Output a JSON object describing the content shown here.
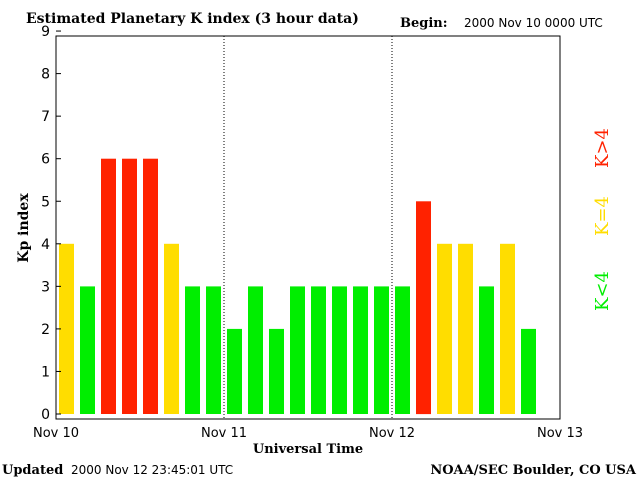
{
  "header": {
    "title": "Estimated Planetary K index (3 hour data)",
    "begin_label": "Begin:",
    "begin_value": "2000 Nov 10 0000 UTC"
  },
  "footer": {
    "updated_label": "Updated",
    "updated_value": "2000 Nov 12 23:45:01 UTC",
    "source": "NOAA/SEC Boulder, CO USA"
  },
  "legend": {
    "high": "K>4",
    "equal": "K=4",
    "low": "K<4"
  },
  "colors": {
    "low": "#00ee00",
    "equal": "#ffdd00",
    "high": "#ff2200"
  },
  "chart_data": {
    "type": "bar",
    "title": "Estimated Planetary K index (3 hour data)",
    "xlabel": "Universal Time",
    "ylabel": "Kp index",
    "ylim": [
      0,
      9
    ],
    "yticks": [
      "0",
      "1",
      "2",
      "3",
      "4",
      "5",
      "6",
      "7",
      "8",
      "9"
    ],
    "xticks": [
      "Nov 10",
      "Nov 11",
      "Nov 12",
      "Nov 13"
    ],
    "day_separators": [
      "Nov 11",
      "Nov 12"
    ],
    "bars_per_day": 8,
    "values": [
      4,
      3,
      6,
      6,
      6,
      4,
      3,
      3,
      2,
      3,
      2,
      3,
      3,
      3,
      3,
      3,
      3,
      5,
      4,
      4,
      3,
      4,
      2
    ],
    "grid": false,
    "legend_position": "right"
  }
}
